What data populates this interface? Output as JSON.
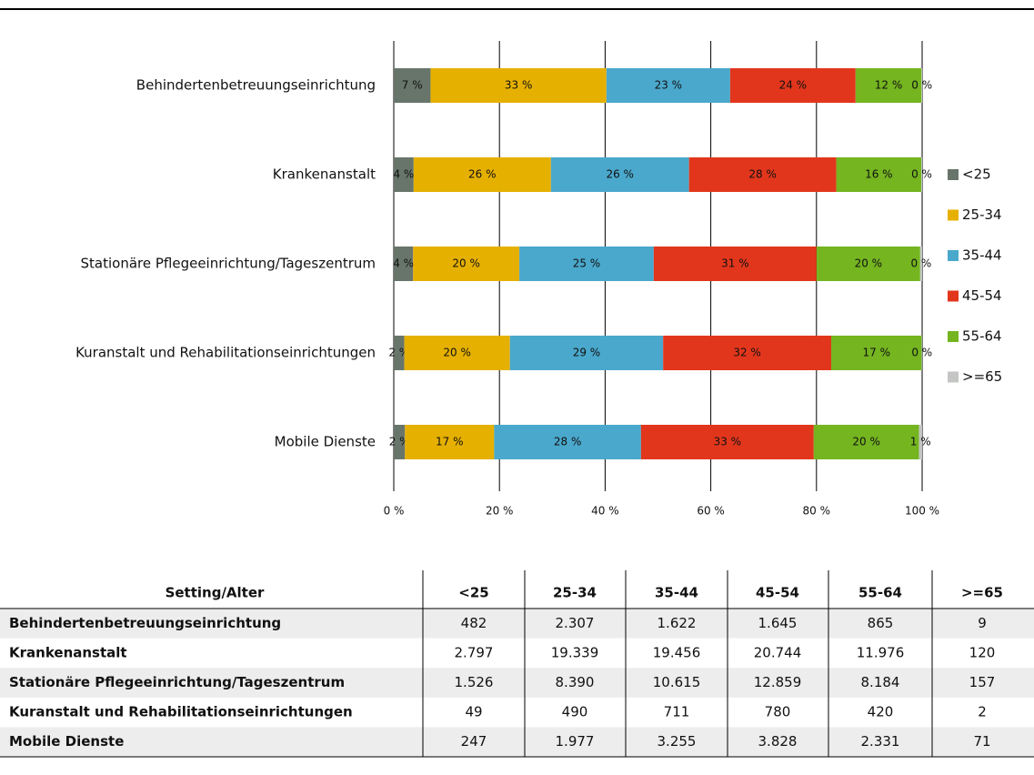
{
  "chart_data": {
    "type": "stacked_barh",
    "categories": [
      "Behindertenbetreuungseinrichtung",
      "Krankenanstalt",
      "Stationäre Pflegeeinrichtung/Tageszentrum",
      "Kuranstalt und Rehabilitationseinrichtungen",
      "Mobile Dienste"
    ],
    "series": [
      {
        "name": "<25",
        "color": "#68756b",
        "values": [
          6.96,
          3.758,
          3.657,
          1.998,
          2.11
        ],
        "value_labels": [
          "7 %",
          "4 %",
          "4 %",
          "2 %",
          "2 %"
        ]
      },
      {
        "name": "25-34",
        "color": "#e6b000",
        "values": [
          33.29,
          25.982,
          20.105,
          19.984,
          16.884
        ],
        "value_labels": [
          "33 %",
          "26 %",
          "20 %",
          "20 %",
          "17 %"
        ]
      },
      {
        "name": "35-44",
        "color": "#4aa8cc",
        "values": [
          23.41,
          26.139,
          25.437,
          28.997,
          27.799
        ],
        "value_labels": [
          "23 %",
          "26 %",
          "25 %",
          "29 %",
          "28 %"
        ]
      },
      {
        "name": "45-54",
        "color": "#e2361c",
        "values": [
          23.74,
          27.869,
          30.814,
          31.811,
          32.693
        ],
        "value_labels": [
          "24 %",
          "28 %",
          "31 %",
          "32 %",
          "33 %"
        ]
      },
      {
        "name": "55-64",
        "color": "#74b520",
        "values": [
          12.48,
          16.09,
          19.611,
          17.129,
          19.908
        ],
        "value_labels": [
          "12 %",
          "16 %",
          "20 %",
          "17 %",
          "20 %"
        ]
      },
      {
        "name": ">=65",
        "color": "#c4c6c4",
        "values": [
          0.13,
          0.161,
          0.376,
          0.082,
          0.606
        ],
        "value_labels": [
          "0 %",
          "0 %",
          "0 %",
          "0 %",
          "1 %"
        ]
      }
    ],
    "xlim": [
      0,
      100
    ],
    "xticks": [
      {
        "value": 0,
        "label": "0 %"
      },
      {
        "value": 20,
        "label": "20 %"
      },
      {
        "value": 40,
        "label": "40 %"
      },
      {
        "value": 60,
        "label": "60 %"
      },
      {
        "value": 80,
        "label": "80 %"
      },
      {
        "value": 100,
        "label": "100 %"
      }
    ],
    "grid": true,
    "legend": "right"
  },
  "table": {
    "header": [
      "Setting/Alter",
      "<25",
      "25-34",
      "35-44",
      "45-54",
      "55-64",
      ">=65"
    ],
    "rows": [
      [
        "Behindertenbetreuungseinrichtung",
        "482",
        "2.307",
        "1.622",
        "1.645",
        "865",
        "9"
      ],
      [
        "Krankenanstalt",
        "2.797",
        "19.339",
        "19.456",
        "20.744",
        "11.976",
        "120"
      ],
      [
        "Stationäre Pflegeeinrichtung/Tageszentrum",
        "1.526",
        "8.390",
        "10.615",
        "12.859",
        "8.184",
        "157"
      ],
      [
        "Kuranstalt und Rehabilitationseinrichtungen",
        "49",
        "490",
        "711",
        "780",
        "420",
        "2"
      ],
      [
        "Mobile Dienste",
        "247",
        "1.977",
        "3.255",
        "3.828",
        "2.331",
        "71"
      ]
    ]
  }
}
